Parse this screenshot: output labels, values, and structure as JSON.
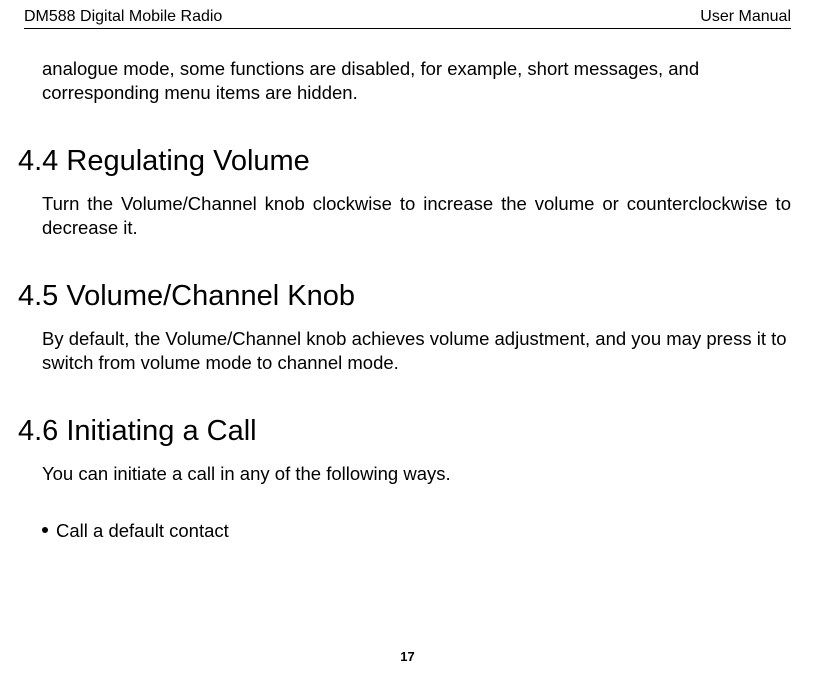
{
  "header": {
    "left": "DM588 Digital Mobile Radio",
    "right": "User Manual"
  },
  "intro": "analogue mode, some functions are disabled, for example, short messages, and corresponding menu items are hidden.",
  "sections": [
    {
      "heading": "4.4 Regulating Volume",
      "body": "Turn the Volume/Channel knob clockwise to increase the volume or counterclockwise to decrease it."
    },
    {
      "heading": "4.5 Volume/Channel Knob",
      "body": "By default, the Volume/Channel knob achieves volume adjustment, and you may press it to switch from volume mode to channel mode."
    },
    {
      "heading": "4.6 Initiating a Call",
      "body": "You can initiate a call in any of the following ways."
    }
  ],
  "bullet": "Call a default contact",
  "page_number": "17"
}
